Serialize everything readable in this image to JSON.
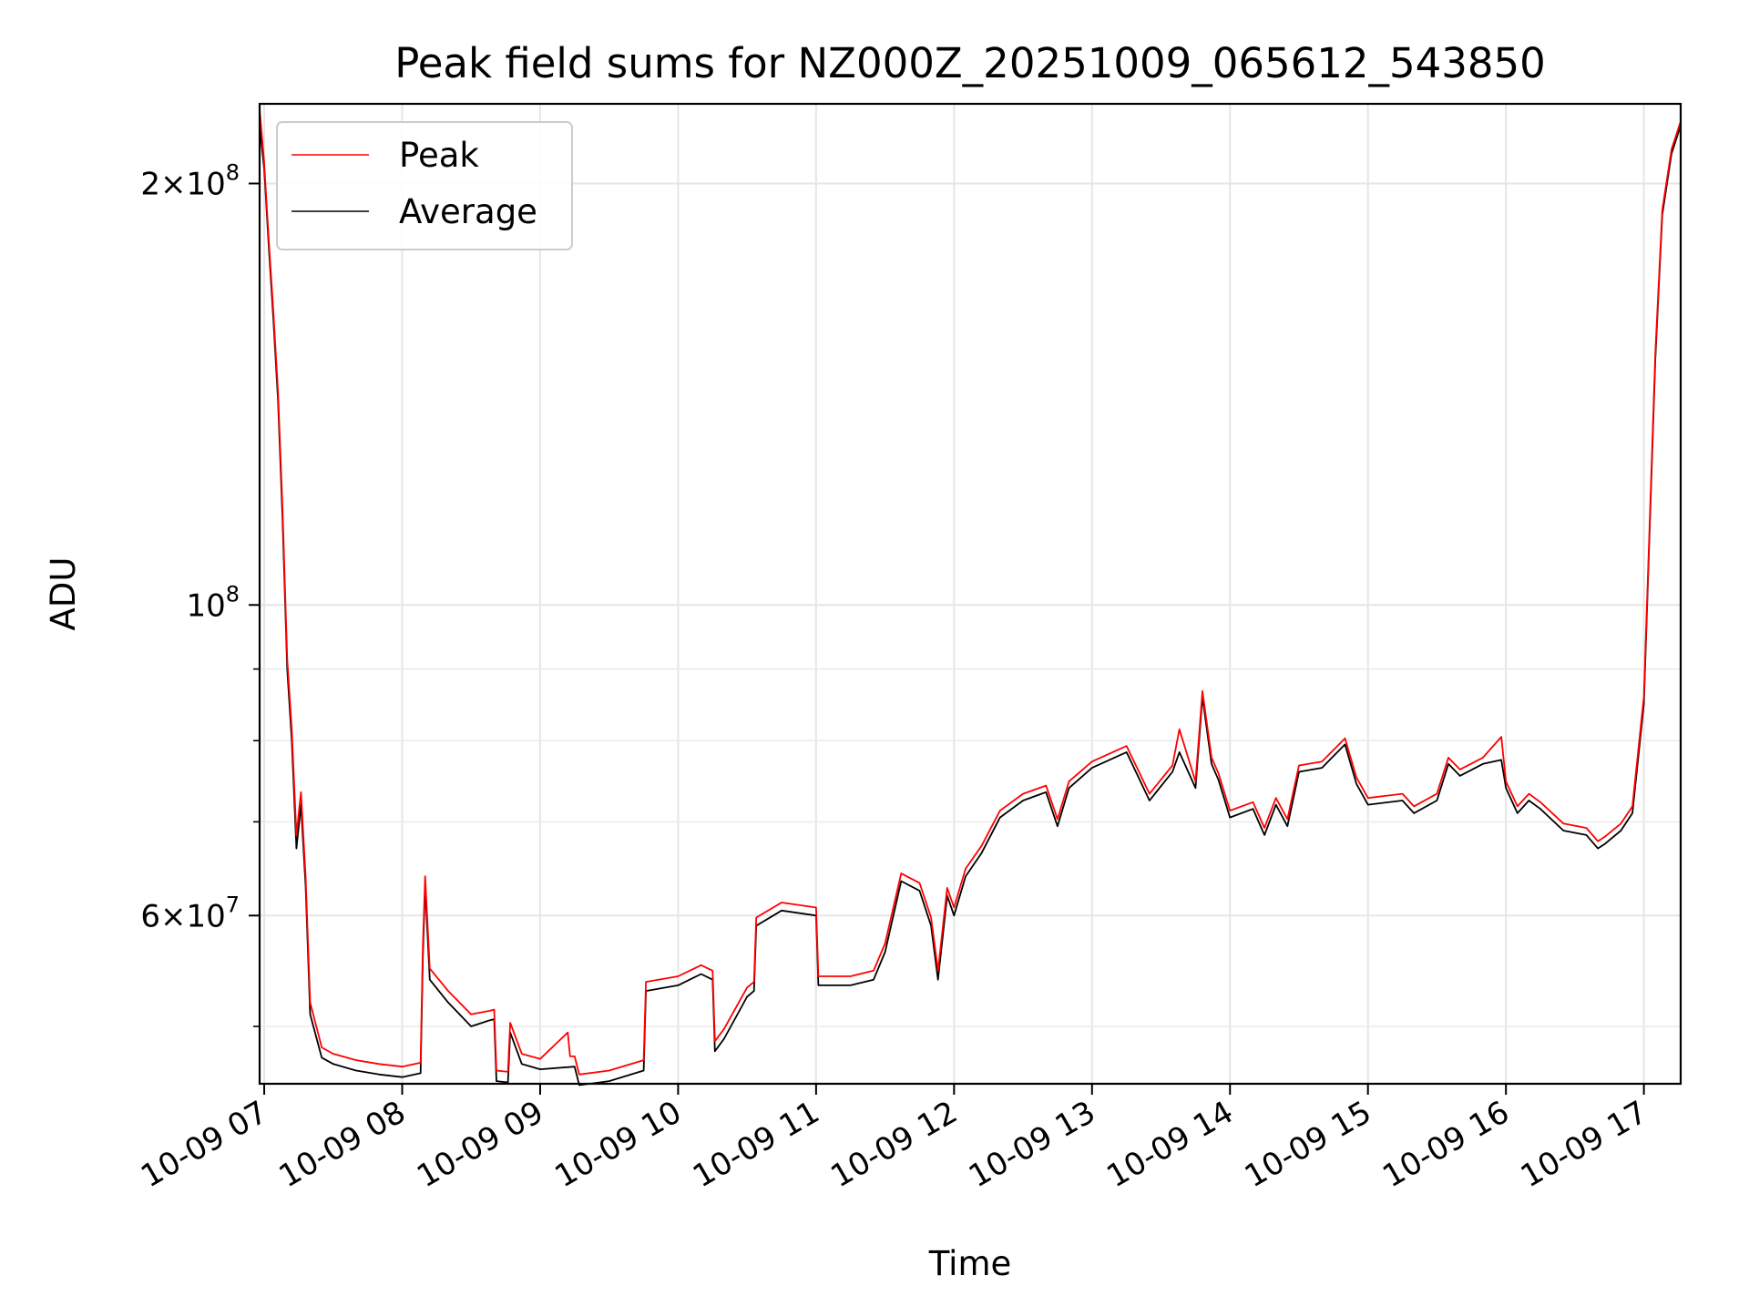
{
  "chart_data": {
    "type": "line",
    "title": "Peak field sums for NZ000Z_20251009_065612_543850",
    "xlabel": "Time",
    "ylabel": "ADU",
    "yscale": "log",
    "ylim": [
      45500000,
      228000000
    ],
    "xlim": [
      "2025-10-09 06:58",
      "2025-10-09 17:16"
    ],
    "grid": true,
    "legend": {
      "position": "top-left",
      "entries": [
        "Peak",
        "Average"
      ]
    },
    "x_ticks": [
      {
        "time": "2025-10-09 07:00",
        "label": "10-09 07"
      },
      {
        "time": "2025-10-09 08:00",
        "label": "10-09 08"
      },
      {
        "time": "2025-10-09 09:00",
        "label": "10-09 09"
      },
      {
        "time": "2025-10-09 10:00",
        "label": "10-09 10"
      },
      {
        "time": "2025-10-09 11:00",
        "label": "10-09 11"
      },
      {
        "time": "2025-10-09 12:00",
        "label": "10-09 12"
      },
      {
        "time": "2025-10-09 13:00",
        "label": "10-09 13"
      },
      {
        "time": "2025-10-09 14:00",
        "label": "10-09 14"
      },
      {
        "time": "2025-10-09 15:00",
        "label": "10-09 15"
      },
      {
        "time": "2025-10-09 16:00",
        "label": "10-09 16"
      },
      {
        "time": "2025-10-09 17:00",
        "label": "10-09 17"
      }
    ],
    "y_major_ticks": [
      {
        "value": 60000000,
        "mant": "6",
        "exp": "7"
      },
      {
        "value": 100000000,
        "mant": "",
        "exp": "8"
      },
      {
        "value": 200000000,
        "mant": "2",
        "exp": "8"
      }
    ],
    "y_minor_ticks": [
      50000000,
      70000000,
      80000000,
      90000000,
      300000000
    ],
    "series": [
      {
        "name": "Average",
        "color": "#000000",
        "points": [
          [
            "2025-10-09 06:58",
            220000000
          ],
          [
            "2025-10-09 07:00",
            205000000
          ],
          [
            "2025-10-09 07:02",
            180000000
          ],
          [
            "2025-10-09 07:04",
            160000000
          ],
          [
            "2025-10-09 07:06",
            140000000
          ],
          [
            "2025-10-09 07:08",
            115000000
          ],
          [
            "2025-10-09 07:10",
            90000000
          ],
          [
            "2025-10-09 07:12",
            80000000
          ],
          [
            "2025-10-09 07:14",
            67000000
          ],
          [
            "2025-10-09 07:16",
            72000000
          ],
          [
            "2025-10-09 07:18",
            63000000
          ],
          [
            "2025-10-09 07:20",
            51000000
          ],
          [
            "2025-10-09 07:25",
            47500000
          ],
          [
            "2025-10-09 07:30",
            47000000
          ],
          [
            "2025-10-09 07:40",
            46500000
          ],
          [
            "2025-10-09 07:50",
            46200000
          ],
          [
            "2025-10-09 08:00",
            46000000
          ],
          [
            "2025-10-09 08:08",
            46300000
          ],
          [
            "2025-10-09 08:09",
            56000000
          ],
          [
            "2025-10-09 08:10",
            63000000
          ],
          [
            "2025-10-09 08:12",
            54000000
          ],
          [
            "2025-10-09 08:20",
            52000000
          ],
          [
            "2025-10-09 08:30",
            50000000
          ],
          [
            "2025-10-09 08:38",
            50500000
          ],
          [
            "2025-10-09 08:40",
            50600000
          ],
          [
            "2025-10-09 08:41",
            45700000
          ],
          [
            "2025-10-09 08:46",
            45600000
          ],
          [
            "2025-10-09 08:47",
            49500000
          ],
          [
            "2025-10-09 08:52",
            47000000
          ],
          [
            "2025-10-09 09:00",
            46600000
          ],
          [
            "2025-10-09 09:15",
            46800000
          ],
          [
            "2025-10-09 09:17",
            45400000
          ],
          [
            "2025-10-09 09:30",
            45700000
          ],
          [
            "2025-10-09 09:45",
            46500000
          ],
          [
            "2025-10-09 09:46",
            53000000
          ],
          [
            "2025-10-09 10:00",
            53500000
          ],
          [
            "2025-10-09 10:10",
            54500000
          ],
          [
            "2025-10-09 10:15",
            54000000
          ],
          [
            "2025-10-09 10:16",
            48000000
          ],
          [
            "2025-10-09 10:20",
            49000000
          ],
          [
            "2025-10-09 10:30",
            52500000
          ],
          [
            "2025-10-09 10:33",
            53000000
          ],
          [
            "2025-10-09 10:34",
            59000000
          ],
          [
            "2025-10-09 10:45",
            60500000
          ],
          [
            "2025-10-09 11:00",
            60000000
          ],
          [
            "2025-10-09 11:01",
            53500000
          ],
          [
            "2025-10-09 11:15",
            53500000
          ],
          [
            "2025-10-09 11:25",
            54000000
          ],
          [
            "2025-10-09 11:30",
            56500000
          ],
          [
            "2025-10-09 11:37",
            63500000
          ],
          [
            "2025-10-09 11:45",
            62500000
          ],
          [
            "2025-10-09 11:50",
            59000000
          ],
          [
            "2025-10-09 11:53",
            54000000
          ],
          [
            "2025-10-09 11:57",
            62000000
          ],
          [
            "2025-10-09 12:00",
            60000000
          ],
          [
            "2025-10-09 12:05",
            64000000
          ],
          [
            "2025-10-09 12:12",
            66500000
          ],
          [
            "2025-10-09 12:20",
            70500000
          ],
          [
            "2025-10-09 12:30",
            72500000
          ],
          [
            "2025-10-09 12:40",
            73500000
          ],
          [
            "2025-10-09 12:45",
            69500000
          ],
          [
            "2025-10-09 12:50",
            74000000
          ],
          [
            "2025-10-09 13:00",
            76500000
          ],
          [
            "2025-10-09 13:15",
            78500000
          ],
          [
            "2025-10-09 13:25",
            72500000
          ],
          [
            "2025-10-09 13:35",
            76000000
          ],
          [
            "2025-10-09 13:38",
            78500000
          ],
          [
            "2025-10-09 13:45",
            74000000
          ],
          [
            "2025-10-09 13:48",
            86000000
          ],
          [
            "2025-10-09 13:52",
            77000000
          ],
          [
            "2025-10-09 13:55",
            75000000
          ],
          [
            "2025-10-09 14:00",
            70500000
          ],
          [
            "2025-10-09 14:10",
            71500000
          ],
          [
            "2025-10-09 14:15",
            68500000
          ],
          [
            "2025-10-09 14:20",
            72000000
          ],
          [
            "2025-10-09 14:25",
            69500000
          ],
          [
            "2025-10-09 14:30",
            76000000
          ],
          [
            "2025-10-09 14:40",
            76500000
          ],
          [
            "2025-10-09 14:50",
            79500000
          ],
          [
            "2025-10-09 14:55",
            74500000
          ],
          [
            "2025-10-09 15:00",
            72000000
          ],
          [
            "2025-10-09 15:15",
            72500000
          ],
          [
            "2025-10-09 15:20",
            71000000
          ],
          [
            "2025-10-09 15:30",
            72500000
          ],
          [
            "2025-10-09 15:35",
            77000000
          ],
          [
            "2025-10-09 15:40",
            75500000
          ],
          [
            "2025-10-09 15:50",
            77000000
          ],
          [
            "2025-10-09 15:58",
            77500000
          ],
          [
            "2025-10-09 16:00",
            74000000
          ],
          [
            "2025-10-09 16:05",
            71000000
          ],
          [
            "2025-10-09 16:10",
            72500000
          ],
          [
            "2025-10-09 16:15",
            71500000
          ],
          [
            "2025-10-09 16:25",
            69000000
          ],
          [
            "2025-10-09 16:35",
            68500000
          ],
          [
            "2025-10-09 16:40",
            67000000
          ],
          [
            "2025-10-09 16:43",
            67500000
          ],
          [
            "2025-10-09 16:50",
            69000000
          ],
          [
            "2025-10-09 16:55",
            71000000
          ],
          [
            "2025-10-09 17:00",
            85000000
          ],
          [
            "2025-10-09 17:05",
            150000000
          ],
          [
            "2025-10-09 17:08",
            190000000
          ],
          [
            "2025-10-09 17:12",
            210000000
          ],
          [
            "2025-10-09 17:16",
            220000000
          ]
        ]
      },
      {
        "name": "Peak",
        "color": "#ff0000",
        "points": [
          [
            "2025-10-09 06:58",
            226000000
          ],
          [
            "2025-10-09 07:00",
            207000000
          ],
          [
            "2025-10-09 07:02",
            182000000
          ],
          [
            "2025-10-09 07:04",
            162000000
          ],
          [
            "2025-10-09 07:06",
            142000000
          ],
          [
            "2025-10-09 07:08",
            117000000
          ],
          [
            "2025-10-09 07:10",
            91500000
          ],
          [
            "2025-10-09 07:12",
            81500000
          ],
          [
            "2025-10-09 07:14",
            68500000
          ],
          [
            "2025-10-09 07:16",
            73500000
          ],
          [
            "2025-10-09 07:18",
            64000000
          ],
          [
            "2025-10-09 07:20",
            52000000
          ],
          [
            "2025-10-09 07:25",
            48300000
          ],
          [
            "2025-10-09 07:30",
            47800000
          ],
          [
            "2025-10-09 07:40",
            47300000
          ],
          [
            "2025-10-09 07:50",
            47000000
          ],
          [
            "2025-10-09 08:00",
            46800000
          ],
          [
            "2025-10-09 08:08",
            47100000
          ],
          [
            "2025-10-09 08:09",
            57000000
          ],
          [
            "2025-10-09 08:10",
            64000000
          ],
          [
            "2025-10-09 08:12",
            55000000
          ],
          [
            "2025-10-09 08:20",
            53000000
          ],
          [
            "2025-10-09 08:30",
            51000000
          ],
          [
            "2025-10-09 08:38",
            51300000
          ],
          [
            "2025-10-09 08:40",
            51400000
          ],
          [
            "2025-10-09 08:41",
            46500000
          ],
          [
            "2025-10-09 08:46",
            46400000
          ],
          [
            "2025-10-09 08:47",
            50300000
          ],
          [
            "2025-10-09 08:52",
            47800000
          ],
          [
            "2025-10-09 09:00",
            47400000
          ],
          [
            "2025-10-09 09:12",
            49500000
          ],
          [
            "2025-10-09 09:13",
            47600000
          ],
          [
            "2025-10-09 09:15",
            47600000
          ],
          [
            "2025-10-09 09:17",
            46200000
          ],
          [
            "2025-10-09 09:30",
            46500000
          ],
          [
            "2025-10-09 09:45",
            47300000
          ],
          [
            "2025-10-09 09:46",
            53800000
          ],
          [
            "2025-10-09 10:00",
            54300000
          ],
          [
            "2025-10-09 10:10",
            55300000
          ],
          [
            "2025-10-09 10:15",
            54800000
          ],
          [
            "2025-10-09 10:16",
            48800000
          ],
          [
            "2025-10-09 10:20",
            49800000
          ],
          [
            "2025-10-09 10:30",
            53300000
          ],
          [
            "2025-10-09 10:33",
            53800000
          ],
          [
            "2025-10-09 10:34",
            59800000
          ],
          [
            "2025-10-09 10:45",
            61300000
          ],
          [
            "2025-10-09 11:00",
            60800000
          ],
          [
            "2025-10-09 11:01",
            54300000
          ],
          [
            "2025-10-09 11:15",
            54300000
          ],
          [
            "2025-10-09 11:25",
            54800000
          ],
          [
            "2025-10-09 11:30",
            57300000
          ],
          [
            "2025-10-09 11:37",
            64300000
          ],
          [
            "2025-10-09 11:45",
            63300000
          ],
          [
            "2025-10-09 11:50",
            59800000
          ],
          [
            "2025-10-09 11:53",
            54800000
          ],
          [
            "2025-10-09 11:57",
            62800000
          ],
          [
            "2025-10-09 12:00",
            60800000
          ],
          [
            "2025-10-09 12:05",
            64800000
          ],
          [
            "2025-10-09 12:12",
            67300000
          ],
          [
            "2025-10-09 12:20",
            71300000
          ],
          [
            "2025-10-09 12:30",
            73300000
          ],
          [
            "2025-10-09 12:40",
            74300000
          ],
          [
            "2025-10-09 12:45",
            70300000
          ],
          [
            "2025-10-09 12:50",
            74800000
          ],
          [
            "2025-10-09 13:00",
            77300000
          ],
          [
            "2025-10-09 13:15",
            79300000
          ],
          [
            "2025-10-09 13:25",
            73300000
          ],
          [
            "2025-10-09 13:35",
            76800000
          ],
          [
            "2025-10-09 13:38",
            81500000
          ],
          [
            "2025-10-09 13:45",
            74800000
          ],
          [
            "2025-10-09 13:48",
            86800000
          ],
          [
            "2025-10-09 13:52",
            77800000
          ],
          [
            "2025-10-09 13:55",
            75800000
          ],
          [
            "2025-10-09 14:00",
            71300000
          ],
          [
            "2025-10-09 14:10",
            72300000
          ],
          [
            "2025-10-09 14:15",
            69300000
          ],
          [
            "2025-10-09 14:20",
            72800000
          ],
          [
            "2025-10-09 14:25",
            70300000
          ],
          [
            "2025-10-09 14:30",
            76800000
          ],
          [
            "2025-10-09 14:40",
            77300000
          ],
          [
            "2025-10-09 14:50",
            80300000
          ],
          [
            "2025-10-09 14:55",
            75300000
          ],
          [
            "2025-10-09 15:00",
            72800000
          ],
          [
            "2025-10-09 15:15",
            73300000
          ],
          [
            "2025-10-09 15:20",
            71800000
          ],
          [
            "2025-10-09 15:30",
            73300000
          ],
          [
            "2025-10-09 15:35",
            77800000
          ],
          [
            "2025-10-09 15:40",
            76300000
          ],
          [
            "2025-10-09 15:50",
            77800000
          ],
          [
            "2025-10-09 15:58",
            80500000
          ],
          [
            "2025-10-09 16:00",
            74800000
          ],
          [
            "2025-10-09 16:05",
            71800000
          ],
          [
            "2025-10-09 16:10",
            73300000
          ],
          [
            "2025-10-09 16:15",
            72300000
          ],
          [
            "2025-10-09 16:25",
            69800000
          ],
          [
            "2025-10-09 16:35",
            69300000
          ],
          [
            "2025-10-09 16:40",
            67800000
          ],
          [
            "2025-10-09 16:43",
            68300000
          ],
          [
            "2025-10-09 16:50",
            69800000
          ],
          [
            "2025-10-09 16:55",
            71800000
          ],
          [
            "2025-10-09 17:00",
            86000000
          ],
          [
            "2025-10-09 17:05",
            151500000
          ],
          [
            "2025-10-09 17:08",
            191500000
          ],
          [
            "2025-10-09 17:12",
            211500000
          ],
          [
            "2025-10-09 17:16",
            221500000
          ]
        ]
      }
    ]
  }
}
